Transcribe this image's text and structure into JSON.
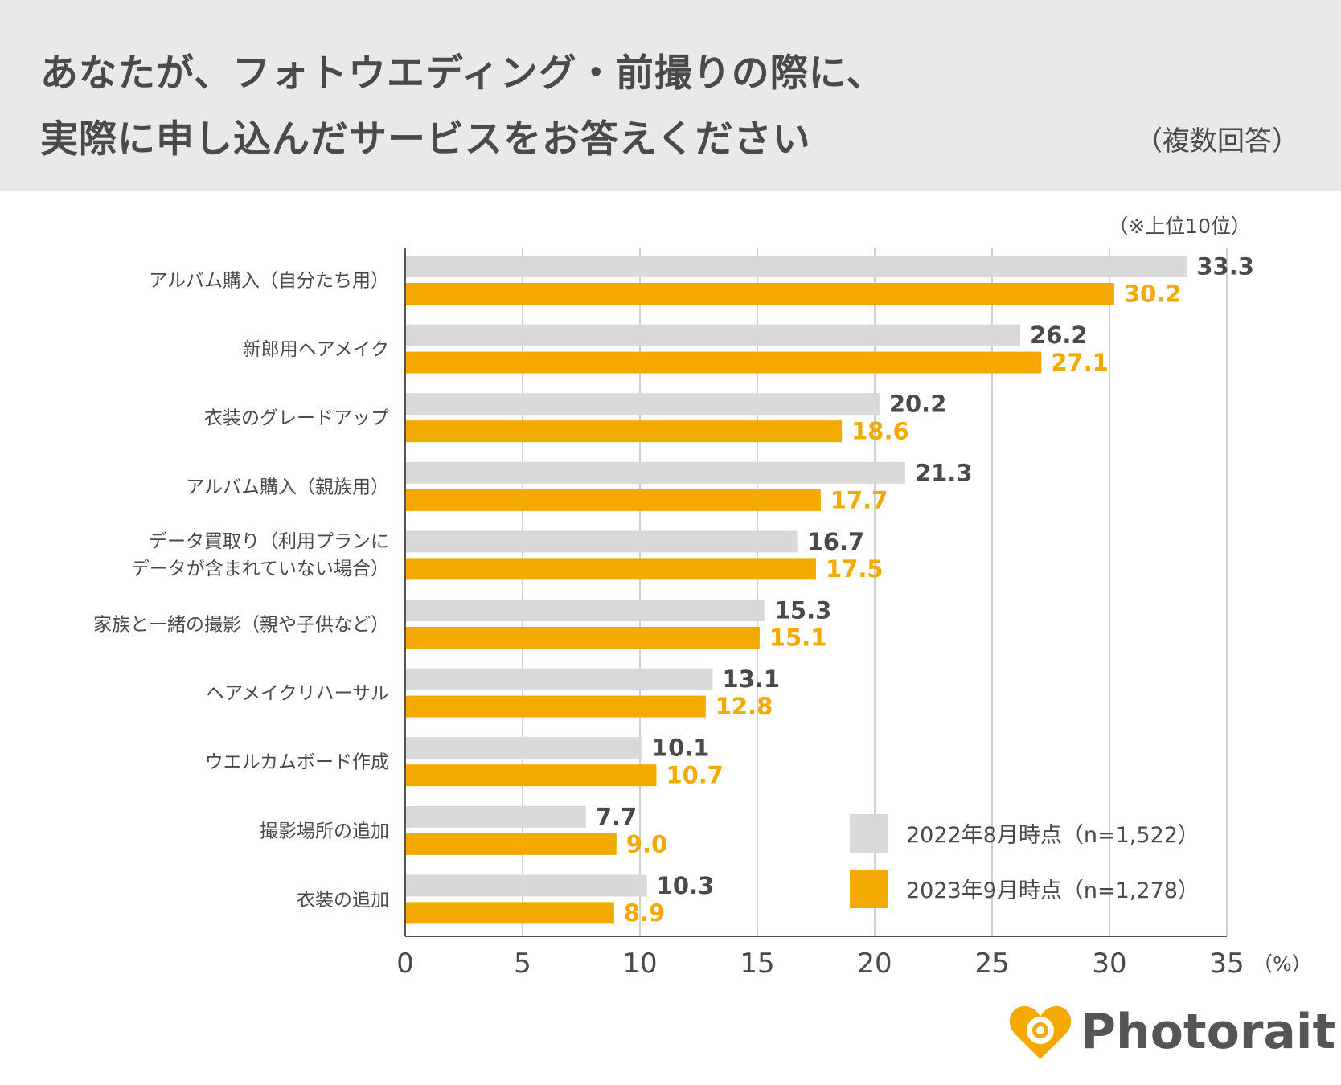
{
  "header": {
    "title_line1": "あなたが、フォトウエディング・前撮りの際に、",
    "title_line2": "実際に申し込んだサービスをお答えください",
    "subtitle": "（複数回答）"
  },
  "note": "（※上位10位）",
  "colors": {
    "series_2022": "#d9d9d9",
    "series_2023": "#f3a900",
    "label_2022": "#4a4a4a",
    "label_2023": "#f3a900",
    "grid": "#d0d0d0",
    "axis": "#555555",
    "header_bg": "#e9e9e9",
    "logo": "#f3a900"
  },
  "chart_data": {
    "type": "bar",
    "orientation": "horizontal",
    "title": "あなたが、フォトウエディング・前撮りの際に、実際に申し込んだサービスをお答えください",
    "categories": [
      [
        "アルバム購入（自分たち用）"
      ],
      [
        "新郎用ヘアメイク"
      ],
      [
        "衣装のグレードアップ"
      ],
      [
        "アルバム購入（親族用）"
      ],
      [
        "データ買取り（利用プランに",
        "データが含まれていない場合）"
      ],
      [
        "家族と一緒の撮影（親や子供など）"
      ],
      [
        "ヘアメイクリハーサル"
      ],
      [
        "ウエルカムボード作成"
      ],
      [
        "撮影場所の追加"
      ],
      [
        "衣装の追加"
      ]
    ],
    "series": [
      {
        "name": "2022年8月時点（n=1,522）",
        "values": [
          33.3,
          26.2,
          20.2,
          21.3,
          16.7,
          15.3,
          13.1,
          10.1,
          7.7,
          10.3
        ],
        "labels": [
          "33.3",
          "26.2",
          "20.2",
          "21.3",
          "16.7",
          "15.3",
          "13.1",
          "10.1",
          "7.7",
          "10.3"
        ]
      },
      {
        "name": "2023年9月時点（n=1,278）",
        "values": [
          30.2,
          27.1,
          18.6,
          17.7,
          17.5,
          15.1,
          12.8,
          10.7,
          9.0,
          8.9
        ],
        "labels": [
          "30.2",
          "27.1",
          "18.6",
          "17.7",
          "17.5",
          "15.1",
          "12.8",
          "10.7",
          "9.0",
          "8.9"
        ]
      }
    ],
    "xlim": [
      0,
      35
    ],
    "ticks": [
      0,
      5,
      10,
      15,
      20,
      25,
      30,
      35
    ],
    "unit": "（%）",
    "grid": true,
    "legend_position": "bottom-right"
  },
  "logo": {
    "text": "Photorait"
  }
}
